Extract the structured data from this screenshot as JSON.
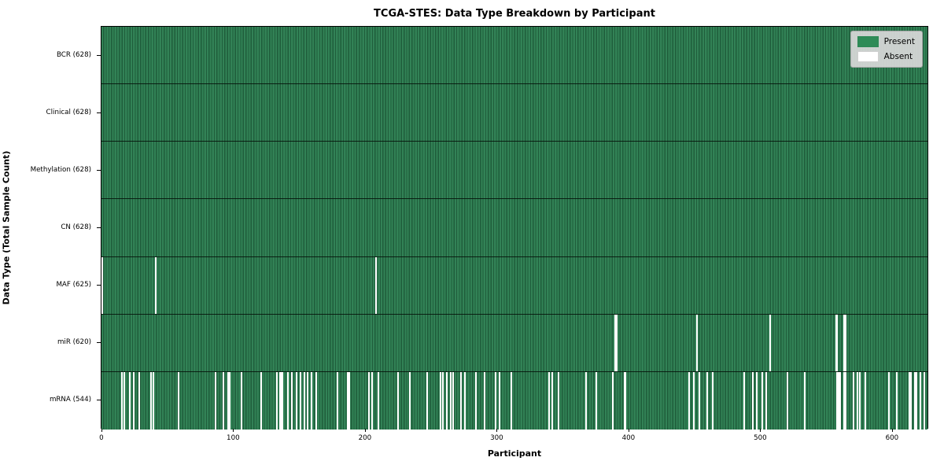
{
  "title": "TCGA-STES: Data Type Breakdown by Participant",
  "xlabel": "Participant",
  "ylabel": "Data Type (Total Sample Count)",
  "legend": {
    "present_label": "Present",
    "absent_label": "Absent"
  },
  "colors": {
    "present": "#2e8b57",
    "present_texture_dark": "#1f5d3b",
    "absent": "#ffffff",
    "legend_bg": "#d9d9d9",
    "border": "#000000"
  },
  "chart_data": {
    "type": "heatmap",
    "title": "TCGA-STES: Data Type Breakdown by Participant",
    "xlabel": "Participant",
    "ylabel": "Data Type (Total Sample Count)",
    "n_participants": 628,
    "x_axis": {
      "ticks": [
        0,
        100,
        200,
        300,
        400,
        500,
        600
      ],
      "xlim": [
        -0.5,
        627.5
      ]
    },
    "legend_position": "upper right",
    "legend_entries": [
      {
        "label": "Present",
        "color": "#2e8b57"
      },
      {
        "label": "Absent",
        "color": "#ffffff"
      }
    ],
    "rows": [
      {
        "label": "BCR (628)",
        "data_type": "BCR",
        "present_count": 628,
        "absent_count": 0,
        "absent_participants": []
      },
      {
        "label": "Clinical (628)",
        "data_type": "Clinical",
        "present_count": 628,
        "absent_count": 0,
        "absent_participants": []
      },
      {
        "label": "Methylation (628)",
        "data_type": "Methylation",
        "present_count": 628,
        "absent_count": 0,
        "absent_participants": []
      },
      {
        "label": "CN (628)",
        "data_type": "CN",
        "present_count": 628,
        "absent_count": 0,
        "absent_participants": []
      },
      {
        "label": "MAF (625)",
        "data_type": "MAF",
        "present_count": 625,
        "absent_count": 3,
        "absent_participants": [
          0,
          41,
          208
        ]
      },
      {
        "label": "miR (620)",
        "data_type": "miR",
        "present_count": 620,
        "absent_count": 8,
        "absent_participants": [
          390,
          391,
          452,
          508,
          558,
          559,
          564,
          565
        ]
      },
      {
        "label": "mRNA (544)",
        "data_type": "mRNA",
        "present_count": 544,
        "absent_count": 84,
        "absent_participants": [
          15,
          17,
          21,
          24,
          28,
          37,
          39,
          58,
          86,
          92,
          96,
          97,
          106,
          121,
          133,
          135,
          136,
          137,
          141,
          144,
          148,
          151,
          154,
          156,
          159,
          163,
          179,
          187,
          188,
          203,
          205,
          210,
          225,
          234,
          247,
          257,
          259,
          262,
          265,
          267,
          273,
          276,
          284,
          291,
          299,
          302,
          311,
          340,
          342,
          347,
          368,
          376,
          388,
          397,
          398,
          446,
          450,
          454,
          460,
          464,
          488,
          495,
          498,
          502,
          505,
          521,
          534,
          559,
          560,
          561,
          564,
          565,
          571,
          574,
          576,
          580,
          598,
          604,
          614,
          615,
          618,
          619,
          622,
          625
        ]
      }
    ]
  }
}
